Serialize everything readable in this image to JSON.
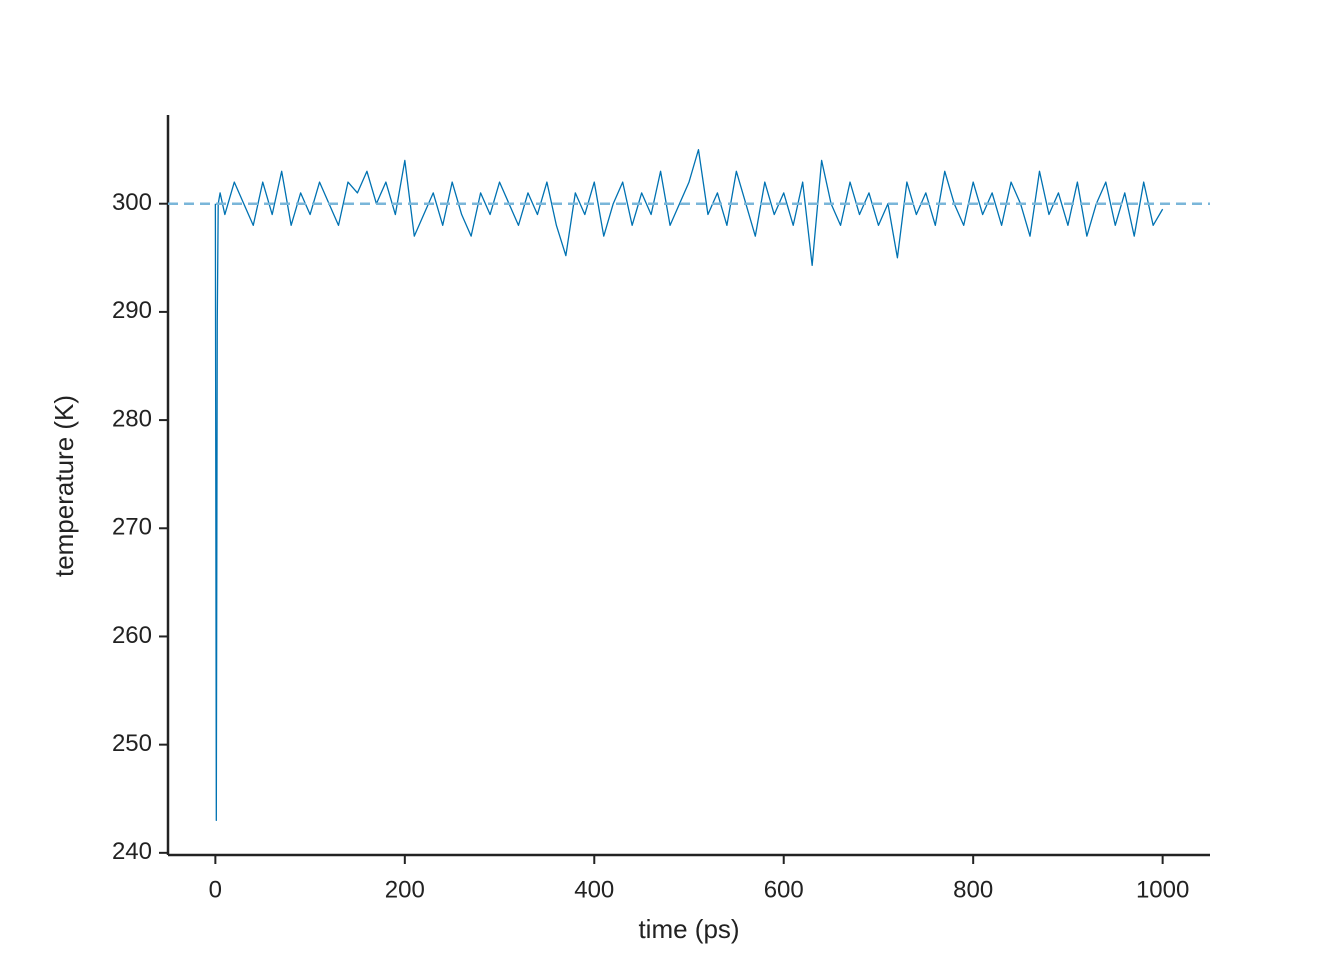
{
  "chart_data": {
    "type": "line",
    "xlabel": "time (ps)",
    "ylabel": "temperature (K)",
    "x": [
      0,
      1,
      2,
      3,
      5,
      10,
      20,
      30,
      40,
      50,
      60,
      70,
      80,
      90,
      100,
      110,
      120,
      130,
      140,
      150,
      160,
      170,
      180,
      190,
      200,
      210,
      220,
      230,
      240,
      250,
      260,
      270,
      280,
      290,
      300,
      310,
      320,
      330,
      340,
      350,
      360,
      370,
      380,
      390,
      400,
      410,
      420,
      430,
      440,
      450,
      460,
      470,
      480,
      490,
      500,
      510,
      520,
      530,
      540,
      550,
      560,
      570,
      580,
      590,
      600,
      610,
      620,
      630,
      640,
      650,
      660,
      670,
      680,
      690,
      700,
      710,
      720,
      730,
      740,
      750,
      760,
      770,
      780,
      790,
      800,
      810,
      820,
      830,
      840,
      850,
      860,
      870,
      880,
      890,
      900,
      910,
      920,
      930,
      940,
      950,
      960,
      970,
      980,
      990,
      1000
    ],
    "values": [
      300,
      243,
      289,
      300,
      301,
      299,
      302,
      300,
      298,
      302,
      299,
      303,
      298,
      301,
      299,
      302,
      300,
      298,
      302,
      301,
      303,
      300,
      302,
      299,
      304,
      297,
      299,
      301,
      298,
      302,
      299,
      297,
      301,
      299,
      302,
      300,
      298,
      301,
      299,
      302,
      298,
      295.2,
      301,
      299,
      302,
      297,
      300,
      302,
      298,
      301,
      299,
      303,
      298,
      300,
      302,
      305,
      299,
      301,
      298,
      303,
      300,
      297,
      302,
      299,
      301,
      298,
      302,
      294.3,
      304,
      300,
      298,
      302,
      299,
      301,
      298,
      300,
      295,
      302,
      299,
      301,
      298,
      303,
      300,
      298,
      302,
      299,
      301,
      298,
      302,
      300,
      297,
      303,
      299,
      301,
      298,
      302,
      297,
      300,
      302,
      298,
      301,
      297,
      302,
      298,
      299.5
    ],
    "color": "#0072b2",
    "reference_line": {
      "y": 300,
      "color": "#7ab6d9",
      "style": "dashed"
    },
    "xlim": [
      -50,
      1050
    ],
    "xticks": [
      0,
      200,
      400,
      600,
      800,
      1000
    ],
    "ylim": [
      239.8,
      308.2
    ],
    "yticks": [
      240,
      250,
      260,
      270,
      280,
      290,
      300
    ],
    "grid": false
  }
}
